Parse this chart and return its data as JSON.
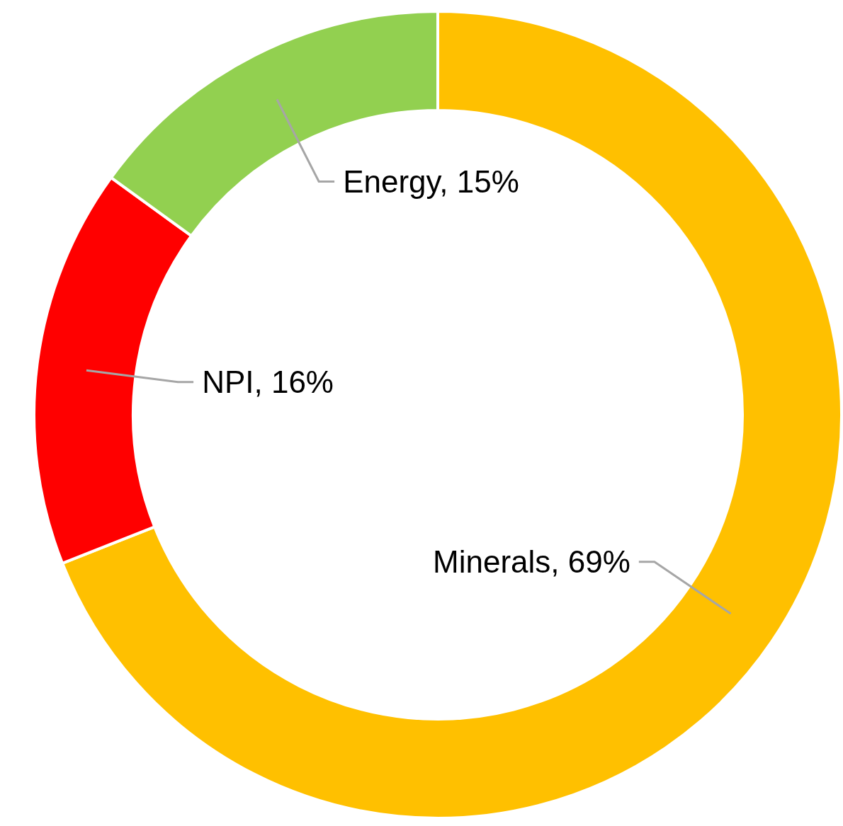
{
  "chart_data": {
    "type": "donut",
    "categories": [
      "Minerals",
      "NPI",
      "Energy"
    ],
    "values": [
      69,
      16,
      15
    ],
    "value_labels": [
      "69%",
      "16%",
      "15%"
    ],
    "colors": [
      "#ffc000",
      "#ff0000",
      "#92d050"
    ],
    "legend": false
  }
}
